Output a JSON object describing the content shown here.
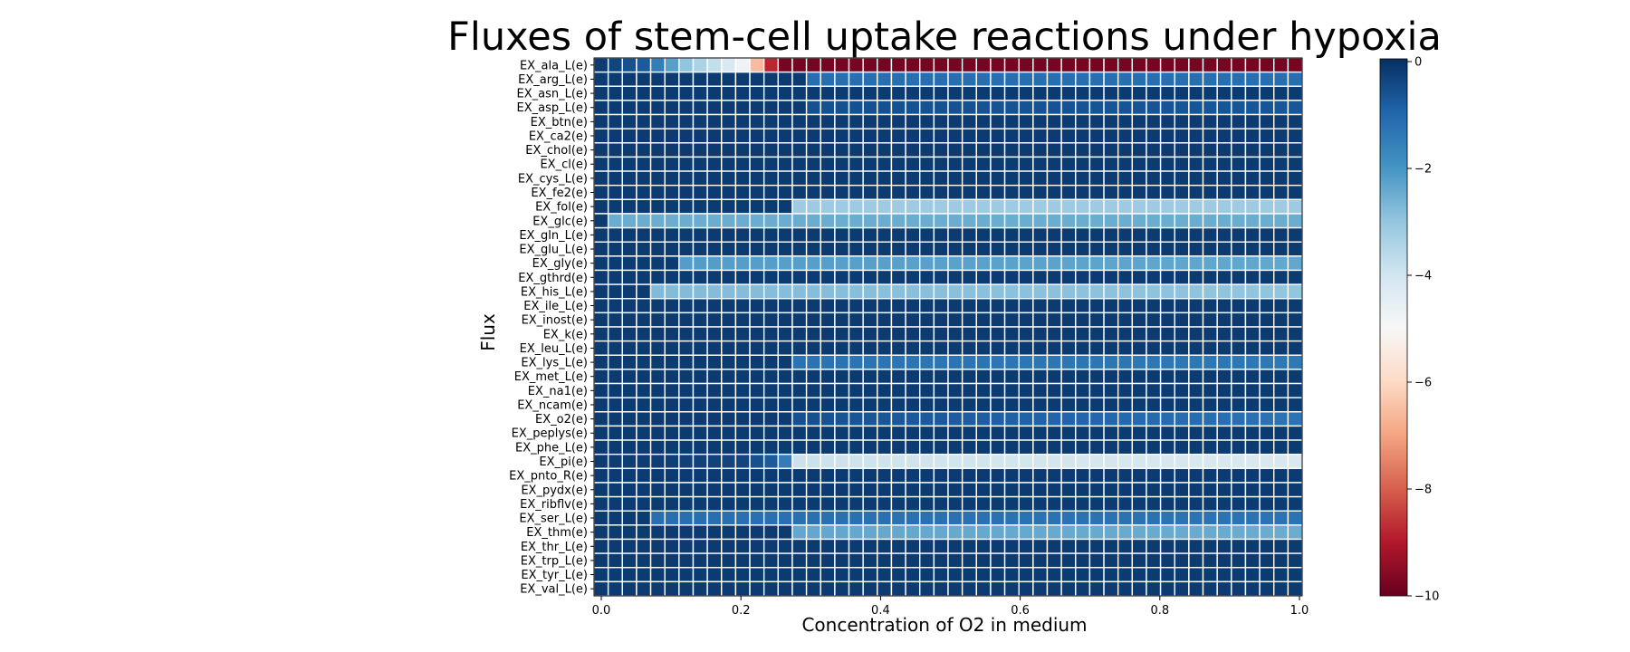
{
  "chart_data": {
    "type": "heatmap",
    "title": "Fluxes of stem-cell uptake reactions under hypoxia",
    "xlabel": "Concentration of O2 in medium",
    "ylabel": "Flux",
    "x_ticks": [
      0.0,
      0.2,
      0.4,
      0.6,
      0.8,
      1.0
    ],
    "xlim": [
      0,
      1
    ],
    "n_columns": 50,
    "rows": [
      "EX_ala_L(e)",
      "EX_arg_L(e)",
      "EX_asn_L(e)",
      "EX_asp_L(e)",
      "EX_btn(e)",
      "EX_ca2(e)",
      "EX_chol(e)",
      "EX_cl(e)",
      "EX_cys_L(e)",
      "EX_fe2(e)",
      "EX_fol(e)",
      "EX_glc(e)",
      "EX_gln_L(e)",
      "EX_glu_L(e)",
      "EX_gly(e)",
      "EX_gthrd(e)",
      "EX_his_L(e)",
      "EX_ile_L(e)",
      "EX_inost(e)",
      "EX_k(e)",
      "EX_leu_L(e)",
      "EX_lys_L(e)",
      "EX_met_L(e)",
      "EX_na1(e)",
      "EX_ncam(e)",
      "EX_o2(e)",
      "EX_peplys(e)",
      "EX_phe_L(e)",
      "EX_pi(e)",
      "EX_pnto_R(e)",
      "EX_pydx(e)",
      "EX_ribflv(e)",
      "EX_ser_L(e)",
      "EX_thm(e)",
      "EX_thr_L(e)",
      "EX_trp_L(e)",
      "EX_tyr_L(e)",
      "EX_val_L(e)"
    ],
    "colorbar": {
      "min": -10,
      "max": 0,
      "ticks": [
        0,
        -2,
        -4,
        -6,
        -8,
        -10
      ],
      "colormap": "RdBu"
    },
    "cell_grid_color": "#ffffff",
    "default_value": -0.2,
    "row_profiles": {
      "EX_ala_L(e)": [
        [
          0,
          -0.2
        ],
        [
          3,
          -0.8
        ],
        [
          6,
          -3.0
        ],
        [
          9,
          -4.2
        ],
        [
          10,
          -4.8
        ],
        [
          11,
          -6.6
        ],
        [
          12,
          -8.8
        ],
        [
          13,
          -9.8
        ],
        [
          49,
          -9.8
        ]
      ],
      "EX_arg_L(e)": [
        [
          0,
          -0.2
        ],
        [
          14,
          -0.2
        ],
        [
          15,
          -1.2
        ],
        [
          49,
          -1.2
        ]
      ],
      "EX_asp_L(e)": [
        [
          0,
          -0.2
        ],
        [
          14,
          -0.2
        ],
        [
          15,
          -0.6
        ],
        [
          49,
          -0.7
        ]
      ],
      "EX_fol(e)": [
        [
          0,
          -0.2
        ],
        [
          13,
          -0.2
        ],
        [
          14,
          -3.2
        ],
        [
          49,
          -3.2
        ]
      ],
      "EX_glc(e)": [
        [
          0,
          -0.2
        ],
        [
          1,
          -2.5
        ],
        [
          49,
          -2.5
        ]
      ],
      "EX_gly(e)": [
        [
          0,
          -0.2
        ],
        [
          5,
          -0.2
        ],
        [
          6,
          -2.2
        ],
        [
          49,
          -2.4
        ]
      ],
      "EX_his_L(e)": [
        [
          0,
          -0.2
        ],
        [
          3,
          -0.2
        ],
        [
          4,
          -2.8
        ],
        [
          49,
          -3.0
        ]
      ],
      "EX_lys_L(e)": [
        [
          0,
          -0.2
        ],
        [
          13,
          -0.2
        ],
        [
          14,
          -1.3
        ],
        [
          49,
          -1.4
        ]
      ],
      "EX_o2(e)": [
        [
          0,
          -0.2
        ],
        [
          13,
          -0.2
        ],
        [
          14,
          -0.6
        ],
        [
          49,
          -1.3
        ]
      ],
      "EX_pi(e)": [
        [
          0,
          -0.2
        ],
        [
          10,
          -0.4
        ],
        [
          12,
          -0.8
        ],
        [
          13,
          -1.5
        ],
        [
          14,
          -3.9
        ],
        [
          49,
          -4.2
        ]
      ],
      "EX_ser_L(e)": [
        [
          0,
          -0.2
        ],
        [
          3,
          -0.2
        ],
        [
          4,
          -1.2
        ],
        [
          49,
          -1.3
        ]
      ],
      "EX_thm(e)": [
        [
          0,
          -0.2
        ],
        [
          13,
          -0.2
        ],
        [
          14,
          -2.4
        ],
        [
          49,
          -2.5
        ]
      ]
    }
  }
}
